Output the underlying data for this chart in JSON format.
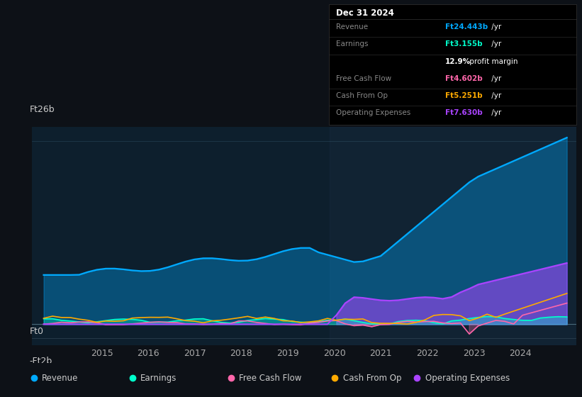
{
  "bg_color": "#0d1117",
  "plot_bg_color": "#0d1f2d",
  "grid_color": "#1e3a4a",
  "title": "Dec 31 2024",
  "ylabel_top": "Ft26b",
  "ylabel_bottom": "-Ft2b",
  "ylabel_zero": "Ft0",
  "colors": {
    "revenue": "#00aaff",
    "earnings": "#00ffcc",
    "free_cash_flow": "#ff66aa",
    "cash_from_op": "#ffaa00",
    "operating_expenses": "#aa44ff"
  },
  "legend": [
    {
      "label": "Revenue",
      "color": "#00aaff"
    },
    {
      "label": "Earnings",
      "color": "#00ffcc"
    },
    {
      "label": "Free Cash Flow",
      "color": "#ff66aa"
    },
    {
      "label": "Cash From Op",
      "color": "#ffaa00"
    },
    {
      "label": "Operating Expenses",
      "color": "#aa44ff"
    }
  ],
  "info_box": {
    "title": "Dec 31 2024",
    "rows": [
      {
        "label": "Revenue",
        "value": "Ft24.443b",
        "suffix": " /yr",
        "color": "#00aaff"
      },
      {
        "label": "Earnings",
        "value": "Ft3.155b",
        "suffix": " /yr",
        "color": "#00ffcc"
      },
      {
        "label": "",
        "value": "12.9%",
        "suffix": " profit margin",
        "color": "#ffffff"
      },
      {
        "label": "Free Cash Flow",
        "value": "Ft4.602b",
        "suffix": " /yr",
        "color": "#ff66aa"
      },
      {
        "label": "Cash From Op",
        "value": "Ft5.251b",
        "suffix": " /yr",
        "color": "#ffaa00"
      },
      {
        "label": "Operating Expenses",
        "value": "Ft7.630b",
        "suffix": " /yr",
        "color": "#aa44ff"
      }
    ]
  },
  "xlim": [
    2013.5,
    2025.2
  ],
  "ylim": [
    -3.0,
    28.0
  ],
  "xticks": [
    2015,
    2016,
    2017,
    2018,
    2019,
    2020,
    2021,
    2022,
    2023,
    2024
  ]
}
